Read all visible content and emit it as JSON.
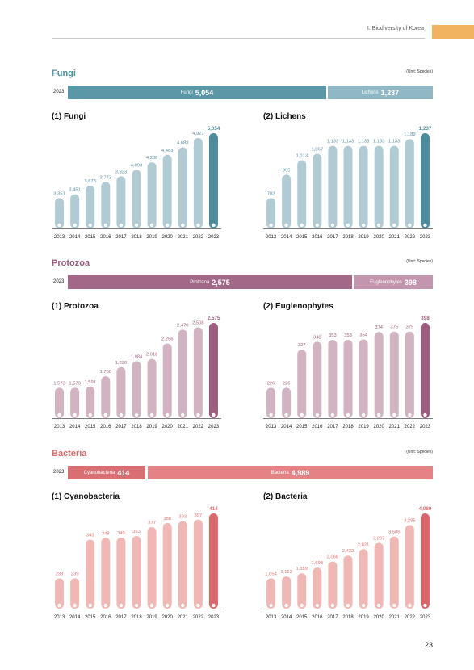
{
  "header": {
    "text": "Ⅰ. Biodiversity of Korea"
  },
  "page_number": "23",
  "sections": [
    {
      "title": "Fungi",
      "title_color": "#4e8fa0",
      "unit": "(Unit: Species)",
      "year": "2023",
      "summary": [
        {
          "label": "Fungi",
          "value": "5,054",
          "color": "#5a97a7"
        },
        {
          "label": "Lichens",
          "value": "1,237",
          "color": "#8fb8c4"
        }
      ]
    },
    {
      "title": "Protozoa",
      "title_color": "#9a5d7e",
      "unit": "(Unit: Species)",
      "year": "2023",
      "summary": [
        {
          "label": "Protozoa",
          "value": "2,575",
          "color": "#a36887"
        },
        {
          "label": "Euglenophytes",
          "value": "398",
          "color": "#c496ae"
        }
      ]
    },
    {
      "title": "Bacteria",
      "title_color": "#dc6b6b",
      "unit": "(Unit: Species)",
      "year": "2023",
      "summary": [
        {
          "label": "Cyanobacteria",
          "value": "414",
          "color": "#d96f72"
        },
        {
          "label": "Bacteria",
          "value": "4,989",
          "color": "#e58286"
        }
      ]
    }
  ],
  "chart_data": [
    {
      "type": "bar",
      "title": "(1) Fungi",
      "categories": [
        "2013",
        "2014",
        "2015",
        "2016",
        "2017",
        "2018",
        "2019",
        "2020",
        "2021",
        "2022",
        "2023"
      ],
      "values": [
        3351,
        3451,
        3673,
        3773,
        3923,
        4093,
        4288,
        4483,
        4683,
        4927,
        5054
      ],
      "labels": [
        "3,351",
        "3,451",
        "3,673",
        "3,773",
        "3,923",
        "4,093",
        "4,288",
        "4,483",
        "4,683",
        "4,927",
        "5,054"
      ],
      "bar_color": "#b1cbd4",
      "highlight_color": "#4c8c9d",
      "label_color": "#5a8fa0"
    },
    {
      "type": "bar",
      "title": "(2) Lichens",
      "categories": [
        "2013",
        "2014",
        "2015",
        "2016",
        "2017",
        "2018",
        "2019",
        "2020",
        "2021",
        "2022",
        "2023"
      ],
      "values": [
        702,
        895,
        1013,
        1067,
        1133,
        1133,
        1133,
        1133,
        1133,
        1189,
        1237
      ],
      "labels": [
        "702",
        "895",
        "1,013",
        "1,067",
        "1,133",
        "1,133",
        "1,133",
        "1,133",
        "1,133",
        "1,189",
        "1,237"
      ],
      "bar_color": "#b1cbd4",
      "highlight_color": "#4c8c9d",
      "label_color": "#5a8fa0"
    },
    {
      "type": "bar",
      "title": "(1) Protozoa",
      "categories": [
        "2013",
        "2014",
        "2015",
        "2016",
        "2017",
        "2018",
        "2019",
        "2020",
        "2021",
        "2022",
        "2023"
      ],
      "values": [
        1573,
        1573,
        1591,
        1750,
        1890,
        1984,
        2018,
        2256,
        2470,
        2508,
        2575
      ],
      "labels": [
        "1,573",
        "1,573",
        "1,591",
        "1,750",
        "1,890",
        "1,984",
        "2,018",
        "2,256",
        "2,470",
        "2,508",
        "2,575"
      ],
      "bar_color": "#d1b3c2",
      "highlight_color": "#9b5c7d",
      "label_color": "#a0607f"
    },
    {
      "type": "bar",
      "title": "(2) Euglenophytes",
      "categories": [
        "2013",
        "2014",
        "2015",
        "2016",
        "2017",
        "2018",
        "2019",
        "2020",
        "2021",
        "2022",
        "2023"
      ],
      "values": [
        226,
        226,
        327,
        348,
        353,
        353,
        354,
        374,
        375,
        375,
        398
      ],
      "labels": [
        "226",
        "226",
        "327",
        "348",
        "353",
        "353",
        "354",
        "374",
        "375",
        "375",
        "398"
      ],
      "bar_color": "#d1b3c2",
      "highlight_color": "#9b5c7d",
      "label_color": "#a0607f"
    },
    {
      "type": "bar",
      "title": "(1) Cyanobacteria",
      "categories": [
        "2013",
        "2014",
        "2015",
        "2016",
        "2017",
        "2018",
        "2019",
        "2020",
        "2021",
        "2022",
        "2023"
      ],
      "values": [
        239,
        239,
        343,
        348,
        349,
        353,
        377,
        388,
        393,
        397,
        414
      ],
      "labels": [
        "239",
        "239",
        "343",
        "348",
        "349",
        "353",
        "377",
        "388",
        "393",
        "397",
        "414"
      ],
      "bar_color": "#f0b8b5",
      "highlight_color": "#d8676c",
      "label_color": "#e07275"
    },
    {
      "type": "bar",
      "title": "(2) Bacteria",
      "categories": [
        "2013",
        "2014",
        "2015",
        "2016",
        "2017",
        "2018",
        "2019",
        "2020",
        "2021",
        "2022",
        "2023"
      ],
      "values": [
        1054,
        1162,
        1359,
        1698,
        2068,
        2432,
        2821,
        3207,
        3586,
        4285,
        4989
      ],
      "labels": [
        "1,054",
        "1,162",
        "1,359",
        "1,698",
        "2,068",
        "2,432",
        "2,821",
        "3,207",
        "3,586",
        "4,285",
        "4,989"
      ],
      "bar_color": "#f0b8b5",
      "highlight_color": "#d8676c",
      "label_color": "#e07275"
    }
  ]
}
